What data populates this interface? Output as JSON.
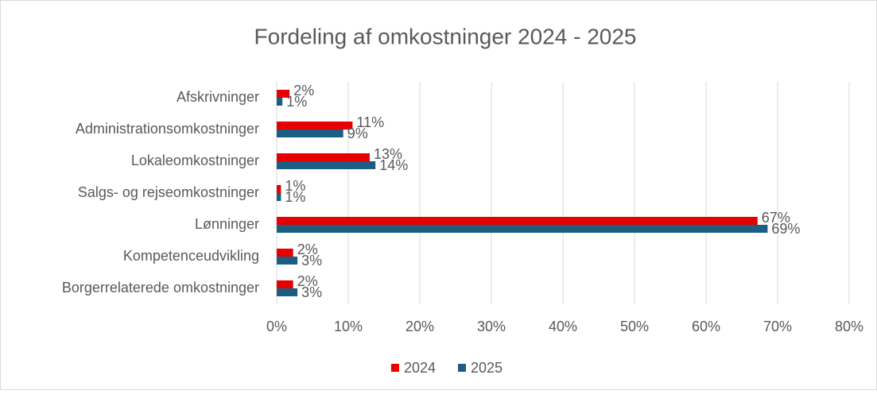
{
  "chart_data": {
    "type": "hbar",
    "title": "Fordeling af omkostninger 2024 - 2025",
    "categories": [
      "Afskrivninger",
      "Administrationsomkostninger",
      "Lokaleomkostninger",
      "Salgs- og rejseomkostninger",
      "Lønninger",
      "Kompetenceudvikling",
      "Borgerrelaterede omkostninger"
    ],
    "series": [
      {
        "name": "2024",
        "color": "#e60000",
        "values": [
          1.8,
          10.6,
          13.0,
          0.6,
          67.2,
          2.3,
          2.3
        ],
        "value_labels": [
          "2%",
          "11%",
          "13%",
          "1%",
          "67%",
          "2%",
          "2%"
        ]
      },
      {
        "name": "2025",
        "color": "#1b5e80",
        "values": [
          0.8,
          9.3,
          13.8,
          0.6,
          68.6,
          2.9,
          2.9
        ],
        "value_labels": [
          "1%",
          "9%",
          "14%",
          "1%",
          "69%",
          "3%",
          "3%"
        ]
      }
    ],
    "xlim": [
      0,
      80
    ],
    "xticks": [
      {
        "value": 0,
        "label": "0%"
      },
      {
        "value": 10,
        "label": "10%"
      },
      {
        "value": 20,
        "label": "20%"
      },
      {
        "value": 30,
        "label": "30%"
      },
      {
        "value": 40,
        "label": "40%"
      },
      {
        "value": 50,
        "label": "50%"
      },
      {
        "value": 60,
        "label": "60%"
      },
      {
        "value": 70,
        "label": "70%"
      },
      {
        "value": 80,
        "label": "80%"
      }
    ],
    "grid": true,
    "legend": "bottom"
  }
}
